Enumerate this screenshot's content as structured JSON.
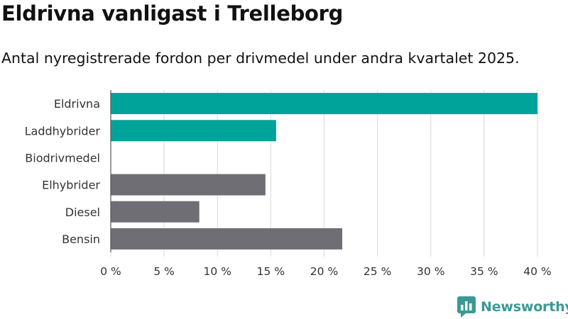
{
  "chart_data": {
    "type": "bar",
    "orientation": "horizontal",
    "title": "Eldrivna vanligast i Trelleborg",
    "subtitle": "Antal nyregistrerade fordon per drivmedel under andra kvartalet 2025.",
    "categories": [
      "Eldrivna",
      "Laddhybrider",
      "Biodrivmedel",
      "Elhybrider",
      "Diesel",
      "Bensin"
    ],
    "values": [
      40.0,
      15.5,
      0.0,
      14.5,
      8.3,
      21.7
    ],
    "bar_colors": [
      "#00a39a",
      "#00a39a",
      "#00a39a",
      "#6f6e74",
      "#6f6e74",
      "#6f6e74"
    ],
    "xlim": [
      0,
      40
    ],
    "xticks": [
      0,
      5,
      10,
      15,
      20,
      25,
      30,
      35,
      40
    ],
    "xtick_labels": [
      "0 %",
      "5 %",
      "10 %",
      "15 %",
      "20 %",
      "25 %",
      "30 %",
      "35 %",
      "40 %"
    ],
    "grid": true
  },
  "logo": {
    "text": "Newsworthy",
    "color": "#3a9a93"
  }
}
